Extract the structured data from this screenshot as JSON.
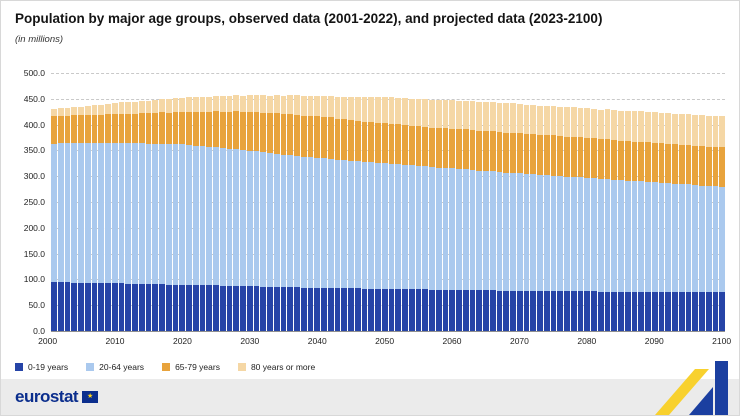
{
  "header": {
    "title": "Population by major age groups, observed data (2001-2022), and projected data (2023-2100)",
    "subtitle": "(in millions)"
  },
  "footer": {
    "brand": "eurostat"
  },
  "colors": {
    "age_0_19": "#2644a7",
    "age_20_64": "#aac9ee",
    "age_65_79": "#e8a33c",
    "age_80_plus": "#f5d7a5",
    "accent_yellow": "#f8d12e",
    "accent_blue": "#1b3fa0"
  },
  "chart_data": {
    "type": "bar",
    "stacked": true,
    "title": "Population by major age groups, observed data (2001-2022), and projected data (2023-2100)",
    "subtitle": "(in millions)",
    "ylabel": "in millions",
    "ylim": [
      0,
      500
    ],
    "grid": true,
    "legend_position": "bottom",
    "yticks": [
      "0.0",
      "50.0",
      "100.0",
      "150.0",
      "200.0",
      "250.0",
      "300.0",
      "350.0",
      "400.0",
      "450.0",
      "500.0"
    ],
    "xticks": [
      2000,
      2010,
      2020,
      2030,
      2040,
      2050,
      2060,
      2070,
      2080,
      2090,
      2100
    ],
    "years": [
      2001,
      2002,
      2003,
      2004,
      2005,
      2006,
      2007,
      2008,
      2009,
      2010,
      2011,
      2012,
      2013,
      2014,
      2015,
      2016,
      2017,
      2018,
      2019,
      2020,
      2021,
      2022,
      2023,
      2024,
      2025,
      2026,
      2027,
      2028,
      2029,
      2030,
      2031,
      2032,
      2033,
      2034,
      2035,
      2036,
      2037,
      2038,
      2039,
      2040,
      2041,
      2042,
      2043,
      2044,
      2045,
      2046,
      2047,
      2048,
      2049,
      2050,
      2051,
      2052,
      2053,
      2054,
      2055,
      2056,
      2057,
      2058,
      2059,
      2060,
      2061,
      2062,
      2063,
      2064,
      2065,
      2066,
      2067,
      2068,
      2069,
      2070,
      2071,
      2072,
      2073,
      2074,
      2075,
      2076,
      2077,
      2078,
      2079,
      2080,
      2081,
      2082,
      2083,
      2084,
      2085,
      2086,
      2087,
      2088,
      2089,
      2090,
      2091,
      2092,
      2093,
      2094,
      2095,
      2096,
      2097,
      2098,
      2099,
      2100
    ],
    "series": [
      {
        "name": "0-19 years",
        "color": "#2644a7",
        "values": [
          95,
          95,
          95,
          94,
          94,
          94,
          94,
          93,
          93,
          93,
          93,
          92,
          92,
          92,
          91,
          91,
          91,
          90,
          90,
          90,
          90,
          89,
          89,
          89,
          89,
          88,
          88,
          88,
          87,
          87,
          87,
          86,
          86,
          86,
          85,
          85,
          85,
          84,
          84,
          84,
          84,
          84,
          83,
          83,
          83,
          83,
          82,
          82,
          82,
          82,
          82,
          82,
          81,
          81,
          81,
          81,
          80,
          80,
          80,
          80,
          80,
          80,
          79,
          79,
          79,
          79,
          78,
          78,
          78,
          78,
          78,
          78,
          77,
          77,
          77,
          77,
          77,
          77,
          77,
          77,
          77,
          76,
          76,
          76,
          76,
          76,
          76,
          76,
          76,
          76,
          76,
          75,
          75,
          75,
          75,
          75,
          75,
          75,
          75,
          75
        ]
      },
      {
        "name": "20-64 years",
        "color": "#aac9ee",
        "values": [
          268,
          269,
          269,
          270,
          270,
          271,
          271,
          271,
          272,
          272,
          272,
          272,
          272,
          272,
          272,
          272,
          272,
          272,
          272,
          272,
          271,
          270,
          269,
          268,
          268,
          266,
          265,
          264,
          263,
          262,
          261,
          260,
          259,
          258,
          257,
          256,
          255,
          254,
          253,
          252,
          251,
          250,
          249,
          248,
          247,
          246,
          246,
          245,
          244,
          243,
          242,
          241,
          241,
          240,
          239,
          238,
          237,
          236,
          236,
          235,
          234,
          234,
          233,
          232,
          232,
          231,
          230,
          229,
          229,
          228,
          227,
          226,
          226,
          225,
          224,
          223,
          222,
          222,
          221,
          220,
          219,
          218,
          218,
          217,
          216,
          215,
          214,
          214,
          213,
          212,
          211,
          211,
          210,
          209,
          209,
          208,
          207,
          206,
          206,
          205
        ]
      },
      {
        "name": "65-79 years",
        "color": "#e8a33c",
        "values": [
          53,
          53,
          53,
          54,
          54,
          54,
          54,
          55,
          55,
          55,
          56,
          57,
          57,
          58,
          59,
          60,
          61,
          61,
          62,
          63,
          64,
          66,
          67,
          68,
          70,
          71,
          72,
          74,
          75,
          76,
          76,
          77,
          77,
          78,
          78,
          79,
          79,
          79,
          80,
          80,
          80,
          80,
          79,
          79,
          79,
          79,
          78,
          78,
          78,
          78,
          78,
          78,
          78,
          77,
          77,
          77,
          77,
          77,
          77,
          77,
          77,
          77,
          77,
          77,
          77,
          77,
          77,
          77,
          77,
          77,
          77,
          77,
          77,
          78,
          78,
          78,
          78,
          78,
          78,
          78,
          78,
          78,
          78,
          77,
          77,
          77,
          77,
          77,
          77,
          77,
          77,
          77,
          77,
          76,
          76,
          76,
          76,
          76,
          76,
          76
        ]
      },
      {
        "name": "80 years or more",
        "color": "#f5d7a5",
        "values": [
          14,
          15,
          16,
          16,
          17,
          18,
          19,
          19,
          20,
          21,
          22,
          22,
          23,
          24,
          24,
          25,
          26,
          26,
          27,
          27,
          28,
          28,
          29,
          29,
          29,
          30,
          30,
          31,
          31,
          32,
          33,
          34,
          34,
          35,
          36,
          37,
          38,
          38,
          39,
          40,
          41,
          42,
          43,
          44,
          45,
          46,
          47,
          48,
          49,
          50,
          51,
          51,
          52,
          52,
          53,
          53,
          54,
          54,
          55,
          55,
          55,
          55,
          56,
          56,
          56,
          56,
          57,
          57,
          57,
          57,
          57,
          57,
          57,
          57,
          57,
          57,
          57,
          57,
          57,
          57,
          57,
          57,
          58,
          58,
          58,
          58,
          59,
          59,
          59,
          59,
          59,
          59,
          59,
          60,
          60,
          60,
          60,
          60,
          60,
          60
        ]
      }
    ]
  }
}
